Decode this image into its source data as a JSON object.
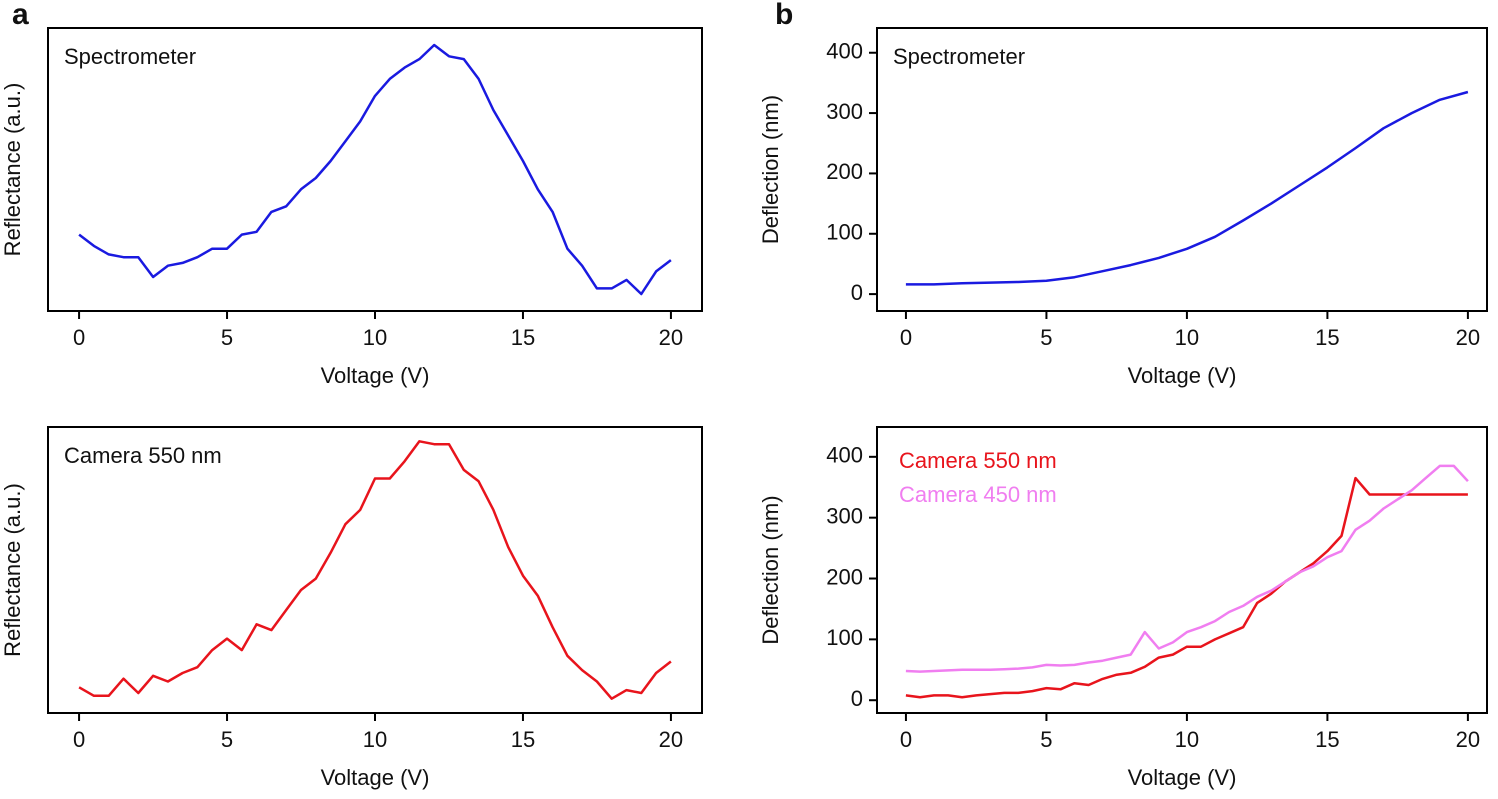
{
  "chart_data": [
    {
      "type": "line",
      "panel_label": "a",
      "annotation": "Spectrometer",
      "xlabel": "Voltage (V)",
      "ylabel": "Reflectance (a.u.)",
      "xlim": [
        -1.05,
        21.05
      ],
      "xticks": [
        0,
        5,
        10,
        15,
        20
      ],
      "ylim": [
        0,
        1
      ],
      "x": [
        0,
        0.5,
        1,
        1.5,
        2,
        2.5,
        3,
        3.5,
        4,
        4.5,
        5,
        5.5,
        6,
        6.5,
        7,
        7.5,
        8,
        8.5,
        9,
        9.5,
        10,
        10.5,
        11,
        11.5,
        12,
        12.5,
        13,
        13.5,
        14,
        14.5,
        15,
        15.5,
        16,
        16.5,
        17,
        17.5,
        18,
        18.5,
        19,
        19.5,
        20
      ],
      "series": [
        {
          "name": "Spectrometer",
          "color": "#1a1ae0",
          "values": [
            0.27,
            0.23,
            0.2,
            0.19,
            0.19,
            0.12,
            0.16,
            0.17,
            0.19,
            0.22,
            0.22,
            0.27,
            0.28,
            0.35,
            0.37,
            0.43,
            0.47,
            0.53,
            0.6,
            0.67,
            0.76,
            0.82,
            0.86,
            0.89,
            0.94,
            0.9,
            0.89,
            0.82,
            0.71,
            0.62,
            0.53,
            0.43,
            0.35,
            0.22,
            0.16,
            0.08,
            0.08,
            0.11,
            0.06,
            0.14,
            0.18
          ]
        }
      ]
    },
    {
      "type": "line",
      "annotation": "Camera 550 nm",
      "xlabel": "Voltage (V)",
      "ylabel": "Reflectance (a.u.)",
      "xlim": [
        -1.05,
        21.05
      ],
      "xticks": [
        0,
        5,
        10,
        15,
        20
      ],
      "ylim": [
        0,
        1
      ],
      "x": [
        0,
        0.5,
        1,
        1.5,
        2,
        2.5,
        3,
        3.5,
        4,
        4.5,
        5,
        5.5,
        6,
        6.5,
        7,
        7.5,
        8,
        8.5,
        9,
        9.5,
        10,
        10.5,
        11,
        11.5,
        12,
        12.5,
        13,
        13.5,
        14,
        14.5,
        15,
        15.5,
        16,
        16.5,
        17,
        17.5,
        18,
        18.5,
        19,
        19.5,
        20
      ],
      "series": [
        {
          "name": "Camera 550 nm",
          "color": "#e8141c",
          "values": [
            0.09,
            0.06,
            0.06,
            0.12,
            0.07,
            0.13,
            0.11,
            0.14,
            0.16,
            0.22,
            0.26,
            0.22,
            0.31,
            0.29,
            0.36,
            0.43,
            0.47,
            0.56,
            0.66,
            0.71,
            0.82,
            0.82,
            0.88,
            0.95,
            0.94,
            0.94,
            0.85,
            0.81,
            0.71,
            0.58,
            0.48,
            0.41,
            0.3,
            0.2,
            0.15,
            0.11,
            0.05,
            0.08,
            0.07,
            0.14,
            0.18
          ]
        }
      ]
    },
    {
      "type": "line",
      "panel_label": "b",
      "annotation": "Spectrometer",
      "xlabel": "Voltage (V)",
      "ylabel": "Deflection (nm)",
      "xlim": [
        -1.03,
        20.68
      ],
      "xticks": [
        0,
        5,
        10,
        15,
        20
      ],
      "ylim": [
        -28,
        441
      ],
      "yticks": [
        0,
        100,
        200,
        300,
        400
      ],
      "x": [
        0,
        1,
        2,
        3,
        4,
        5,
        6,
        7,
        8,
        9,
        10,
        11,
        12,
        13,
        14,
        15,
        16,
        17,
        18,
        19,
        20
      ],
      "series": [
        {
          "name": "Spectrometer",
          "color": "#1a1ae0",
          "values": [
            16,
            16,
            18,
            19,
            20,
            22,
            28,
            38,
            48,
            60,
            75,
            95,
            122,
            150,
            180,
            210,
            242,
            275,
            300,
            322,
            335
          ]
        }
      ]
    },
    {
      "type": "line",
      "legend": "upper left",
      "xlabel": "Voltage (V)",
      "ylabel": "Deflection (nm)",
      "xlim": [
        -1.03,
        20.68
      ],
      "xticks": [
        0,
        5,
        10,
        15,
        20
      ],
      "ylim": [
        -21,
        449
      ],
      "yticks": [
        0,
        100,
        200,
        300,
        400
      ],
      "x": [
        0,
        0.5,
        1,
        1.5,
        2,
        2.5,
        3,
        3.5,
        4,
        4.5,
        5,
        5.5,
        6,
        6.5,
        7,
        7.5,
        8,
        8.5,
        9,
        9.5,
        10,
        10.5,
        11,
        11.5,
        12,
        12.5,
        13,
        13.5,
        14,
        14.5,
        15,
        15.5,
        16,
        16.5,
        17,
        17.5,
        18,
        18.5,
        19,
        19.5,
        20
      ],
      "series": [
        {
          "name": "Camera 550 nm",
          "color": "#e8141c",
          "values": [
            8,
            5,
            8,
            8,
            5,
            8,
            10,
            12,
            12,
            15,
            20,
            18,
            28,
            25,
            35,
            42,
            45,
            55,
            70,
            75,
            88,
            88,
            100,
            110,
            120,
            160,
            175,
            195,
            210,
            225,
            245,
            270,
            365,
            338,
            338,
            338,
            338,
            338,
            338,
            338,
            338
          ]
        },
        {
          "name": "Camera 450 nm",
          "color": "#f07ef0",
          "values": [
            48,
            47,
            48,
            49,
            50,
            50,
            50,
            51,
            52,
            54,
            58,
            57,
            58,
            62,
            65,
            70,
            75,
            112,
            85,
            95,
            112,
            120,
            130,
            145,
            155,
            170,
            180,
            195,
            210,
            220,
            235,
            245,
            280,
            295,
            315,
            330,
            345,
            365,
            385,
            385,
            360
          ]
        }
      ]
    }
  ]
}
